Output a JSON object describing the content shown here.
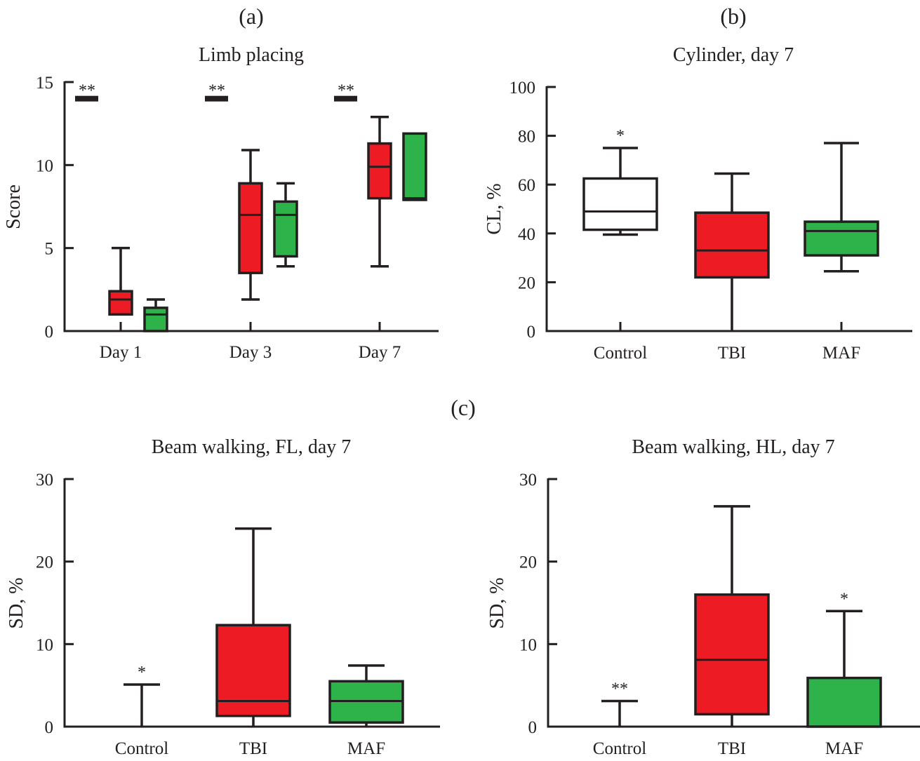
{
  "figure_labels": {
    "a": "(a)",
    "b": "(b)",
    "c": "(c)"
  },
  "colors": {
    "control": "#ffffff",
    "tbi": "#ED1C24",
    "maf": "#2DB34A",
    "ink": "#231f20"
  },
  "chart_data": [
    {
      "id": "limb-placing",
      "panel": "(a)",
      "type": "box",
      "title": "Limb placing",
      "xlabel": "",
      "ylabel": "Score",
      "ylim": [
        0,
        15
      ],
      "yticks": [
        0,
        5,
        10,
        15
      ],
      "categories": [
        "Day 1",
        "Day 3",
        "Day 7"
      ],
      "series": [
        {
          "name": "TBI",
          "color": "#ED1C24",
          "boxes": [
            {
              "min": 1.0,
              "q1": 1.0,
              "median": 1.9,
              "q3": 2.4,
              "max": 5.0
            },
            {
              "min": 1.9,
              "q1": 3.5,
              "median": 7.0,
              "q3": 8.9,
              "max": 10.9
            },
            {
              "min": 3.9,
              "q1": 8.0,
              "median": 9.9,
              "q3": 11.3,
              "max": 12.9
            }
          ]
        },
        {
          "name": "MAF",
          "color": "#2DB34A",
          "boxes": [
            {
              "min": 0.0,
              "q1": 0.0,
              "median": 1.0,
              "q3": 1.4,
              "max": 1.9
            },
            {
              "min": 3.9,
              "q1": 4.5,
              "median": 7.0,
              "q3": 7.8,
              "max": 8.9
            },
            {
              "min": 7.9,
              "q1": 7.9,
              "median": 8.0,
              "q3": 11.9,
              "max": 11.9
            }
          ]
        }
      ],
      "significance_bars": [
        {
          "category": "Day 1",
          "label": "**",
          "y": 14.0
        },
        {
          "category": "Day 3",
          "label": "**",
          "y": 14.0
        },
        {
          "category": "Day 7",
          "label": "**",
          "y": 14.0
        }
      ]
    },
    {
      "id": "cylinder",
      "panel": "(b)",
      "type": "box",
      "title": "Cylinder, day 7",
      "xlabel": "",
      "ylabel": "CL, %",
      "ylim": [
        0,
        100
      ],
      "yticks": [
        0,
        20,
        40,
        60,
        80,
        100
      ],
      "categories": [
        "Control",
        "TBI",
        "MAF"
      ],
      "boxes": [
        {
          "name": "Control",
          "color": "#ffffff",
          "min": 39.5,
          "q1": 41.5,
          "median": 49.0,
          "q3": 62.5,
          "max": 75.0,
          "sig": "*"
        },
        {
          "name": "TBI",
          "color": "#ED1C24",
          "min": 0.0,
          "q1": 22.0,
          "median": 33.0,
          "q3": 48.5,
          "max": 64.5,
          "sig": ""
        },
        {
          "name": "MAF",
          "color": "#2DB34A",
          "min": 24.5,
          "q1": 31.0,
          "median": 41.0,
          "q3": 44.8,
          "max": 77.0,
          "sig": ""
        }
      ]
    },
    {
      "id": "beam-fl",
      "panel": "(c)",
      "type": "box",
      "title": "Beam walking, FL, day 7",
      "xlabel": "",
      "ylabel": "SD, %",
      "ylim": [
        0,
        30
      ],
      "yticks": [
        0,
        10,
        20,
        30
      ],
      "categories": [
        "Control",
        "TBI",
        "MAF"
      ],
      "boxes": [
        {
          "name": "Control",
          "color": "#ffffff",
          "min": 0.0,
          "q1": 0.0,
          "median": 0.0,
          "q3": 0.0,
          "max": 5.1,
          "sig": "*"
        },
        {
          "name": "TBI",
          "color": "#ED1C24",
          "min": 0.0,
          "q1": 1.3,
          "median": 3.1,
          "q3": 12.3,
          "max": 24.0,
          "sig": ""
        },
        {
          "name": "MAF",
          "color": "#2DB34A",
          "min": 0.0,
          "q1": 0.5,
          "median": 3.1,
          "q3": 5.5,
          "max": 7.4,
          "sig": ""
        }
      ]
    },
    {
      "id": "beam-hl",
      "panel": "(c)",
      "type": "box",
      "title": "Beam walking, HL, day 7",
      "xlabel": "",
      "ylabel": "SD, %",
      "ylim": [
        0,
        30
      ],
      "yticks": [
        0,
        10,
        20,
        30
      ],
      "categories": [
        "Control",
        "TBI",
        "MAF"
      ],
      "boxes": [
        {
          "name": "Control",
          "color": "#ffffff",
          "min": 0.0,
          "q1": 0.0,
          "median": 0.0,
          "q3": 0.0,
          "max": 3.1,
          "sig": "**"
        },
        {
          "name": "TBI",
          "color": "#ED1C24",
          "min": 0.0,
          "q1": 1.5,
          "median": 8.1,
          "q3": 16.0,
          "max": 26.7,
          "sig": ""
        },
        {
          "name": "MAF",
          "color": "#2DB34A",
          "min": 0.0,
          "q1": 0.0,
          "median": 0.0,
          "q3": 5.9,
          "max": 14.0,
          "sig": "*"
        }
      ]
    }
  ]
}
